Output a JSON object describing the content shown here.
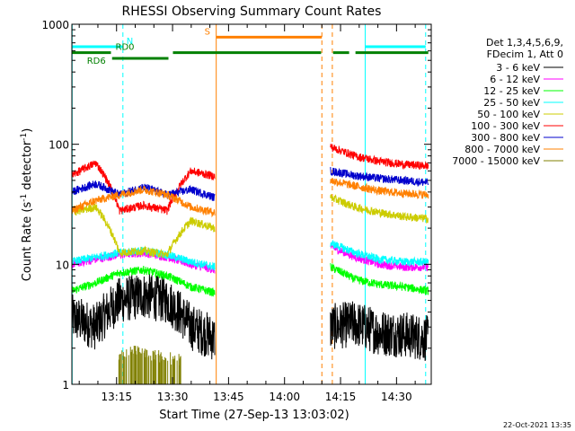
{
  "chart_data": {
    "type": "line",
    "title": "RHESSI Observing Summary Count Rates",
    "xlabel": "Start Time (27-Sep-13 13:03:02)",
    "ylabel_main": "Count Rate (s",
    "ylabel_sup1": "-1",
    "ylabel_mid": " detector",
    "ylabel_sup2": "-1",
    "ylabel_end": ")",
    "y_scale": "log",
    "ylim": [
      1,
      1000
    ],
    "xlim_min": [
      3.03,
      99.3
    ],
    "x_ticks": [
      {
        "t": 15,
        "label": "13:15"
      },
      {
        "t": 30,
        "label": "13:30"
      },
      {
        "t": 45,
        "label": "13:45"
      },
      {
        "t": 60,
        "label": "14:00"
      },
      {
        "t": 75,
        "label": "14:15"
      },
      {
        "t": 90,
        "label": "14:30"
      }
    ],
    "y_ticks": [
      {
        "v": 1,
        "label": "1"
      },
      {
        "v": 10,
        "label": "10"
      },
      {
        "v": 100,
        "label": "100"
      },
      {
        "v": 1000,
        "label": "1000"
      }
    ],
    "legend_header": [
      "Det 1,3,4,5,6,9,",
      "FDecim 1, Att 0"
    ],
    "legend_placement": "right",
    "series": [
      {
        "name": "3 - 6 keV",
        "color": "#000000",
        "seg1": [
          3.6,
          3.0,
          5.0,
          5.5,
          5.0,
          3.0,
          2.4
        ],
        "seg2": [
          3.0,
          3.2,
          2.7,
          2.6,
          2.4
        ]
      },
      {
        "name": "6 - 12 keV",
        "color": "#ff00ff",
        "seg1": [
          10.0,
          11.0,
          12.0,
          12.5,
          11.5,
          10.0,
          9.0
        ],
        "seg2": [
          14.0,
          11.5,
          10.0,
          9.5,
          9.5
        ]
      },
      {
        "name": "12 - 25 keV",
        "color": "#00ff00",
        "seg1": [
          6.0,
          7.0,
          8.5,
          9.0,
          8.0,
          6.5,
          5.8
        ],
        "seg2": [
          9.5,
          7.5,
          6.8,
          6.5,
          6.0
        ]
      },
      {
        "name": "25 - 50 keV",
        "color": "#00ffff",
        "seg1": [
          10.5,
          11.5,
          12.5,
          13.0,
          12.0,
          10.5,
          9.5
        ],
        "seg2": [
          15.0,
          12.5,
          11.0,
          10.5,
          10.5
        ]
      },
      {
        "name": "50 - 100 keV",
        "color": "#cccc00",
        "seg1": [
          27.0,
          30.0,
          12.5,
          13.0,
          12.0,
          23.0,
          20.0
        ],
        "seg2": [
          36.0,
          30.0,
          27.0,
          25.0,
          24.0
        ]
      },
      {
        "name": "100 - 300 keV",
        "color": "#ff0000",
        "seg1": [
          55.0,
          70.0,
          28.0,
          31.0,
          28.0,
          60.0,
          54.0
        ],
        "seg2": [
          95.0,
          80.0,
          72.0,
          68.0,
          66.0
        ]
      },
      {
        "name": "300 - 800 keV",
        "color": "#0000cc",
        "seg1": [
          40.0,
          47.0,
          38.0,
          44.0,
          38.0,
          42.0,
          36.0
        ],
        "seg2": [
          60.0,
          55.0,
          52.0,
          50.0,
          48.0
        ]
      },
      {
        "name": "800 - 7000 keV",
        "color": "#ff8000",
        "seg1": [
          28.0,
          34.0,
          38.0,
          42.0,
          38.0,
          30.0,
          27.0
        ],
        "seg2": [
          50.0,
          45.0,
          41.0,
          39.0,
          38.0
        ]
      },
      {
        "name": "7000 - 15000 keV",
        "color": "#808000",
        "seg1": [
          1.6,
          1.9,
          1.75,
          1.65,
          1.55
        ],
        "seg2": []
      }
    ],
    "seg1_range_min": [
      3.03,
      41.3
    ],
    "seg2_range_min": [
      72.3,
      98.5
    ],
    "olive_range_min": [
      15.5,
      32.5
    ],
    "vlines": [
      {
        "t": 3.1,
        "color": "#00ffff",
        "style": "solid"
      },
      {
        "t": 16.7,
        "color": "#00ffff",
        "style": "dashed"
      },
      {
        "t": 41.7,
        "color": "#ff8000",
        "style": "solid"
      },
      {
        "t": 70.0,
        "color": "#ff8000",
        "style": "dashed"
      },
      {
        "t": 72.8,
        "color": "#ff8000",
        "style": "dashed"
      },
      {
        "t": 81.6,
        "color": "#00ffff",
        "style": "solid"
      },
      {
        "t": 97.8,
        "color": "#00ffff",
        "style": "dashed"
      }
    ],
    "flag_bars": [
      {
        "label": "N",
        "color": "#00ffff",
        "y": 650,
        "ranges": [
          [
            3.1,
            16.7
          ],
          [
            81.6,
            97.8
          ]
        ]
      },
      {
        "label": "S",
        "color": "#ff8000",
        "y": 780,
        "ranges": [
          [
            41.7,
            70.0
          ]
        ]
      },
      {
        "label": "RD0",
        "color": "#008000",
        "y": 580,
        "ranges": [
          [
            3.1,
            13.5
          ],
          [
            30.1,
            69.8
          ],
          [
            73.0,
            77.3
          ],
          [
            79.0,
            98.5
          ]
        ]
      },
      {
        "label": "RD6",
        "color": "#008000",
        "y": 520,
        "ranges": [
          [
            13.8,
            28.9
          ]
        ]
      }
    ],
    "timestamp": "22-Oct-2021 13:35"
  }
}
